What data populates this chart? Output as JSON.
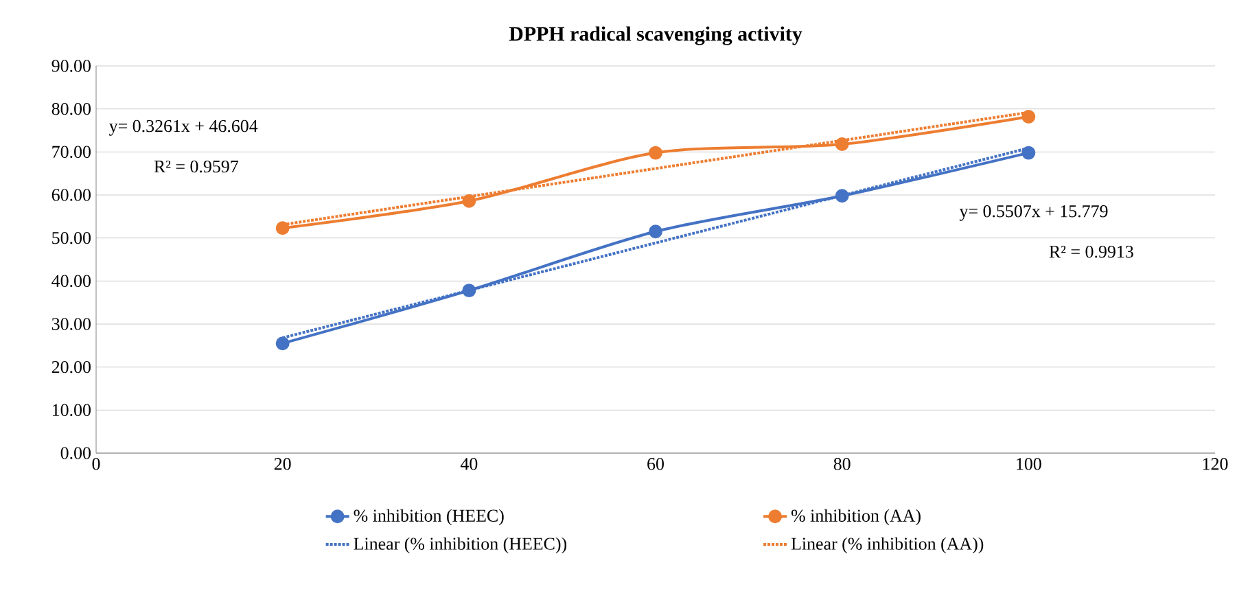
{
  "chart_data": {
    "type": "line",
    "title": "DPPH radical scavenging activity",
    "xlim": [
      0,
      120
    ],
    "xticks": [
      0,
      20,
      40,
      60,
      80,
      100,
      120
    ],
    "ylim": [
      0,
      90
    ],
    "yticks": [
      {
        "value": 0,
        "label": "0.00"
      },
      {
        "value": 10,
        "label": "10.00"
      },
      {
        "value": 20,
        "label": "20.00"
      },
      {
        "value": 30,
        "label": "30.00"
      },
      {
        "value": 40,
        "label": "40.00"
      },
      {
        "value": 50,
        "label": "50.00"
      },
      {
        "value": 60,
        "label": "60.00"
      },
      {
        "value": 70,
        "label": "70.00"
      },
      {
        "value": 80,
        "label": "80.00"
      },
      {
        "value": 90,
        "label": "90.00"
      }
    ],
    "grid": "y",
    "legend": "bottom",
    "series": [
      {
        "name": "% inhibition (HEEC)",
        "color": "#4472c4",
        "x": [
          20,
          40,
          60,
          80,
          100
        ],
        "values": [
          25.5,
          37.8,
          51.5,
          59.8,
          69.8
        ],
        "marker": "circle",
        "line_style": "solid"
      },
      {
        "name": "% inhibition (AA)",
        "color": "#ed7d31",
        "x": [
          20,
          40,
          60,
          80,
          100
        ],
        "values": [
          52.3,
          58.6,
          69.8,
          71.8,
          78.2
        ],
        "marker": "circle",
        "line_style": "solid"
      },
      {
        "name": "Linear (% inhibition (HEEC))",
        "color": "#4472c4",
        "x": [
          20,
          100
        ],
        "values": [
          26.8,
          70.9
        ],
        "marker": "none",
        "line_style": "dotted"
      },
      {
        "name": "Linear (% inhibition (AA))",
        "color": "#ed7d31",
        "x": [
          20,
          100
        ],
        "values": [
          53.1,
          79.2
        ],
        "marker": "none",
        "line_style": "dotted"
      }
    ],
    "annotations": [
      "y= 0.3261x + 46.604",
      "R² = 0.9597",
      "y= 0.5507x + 15.779",
      "R² = 0.9913"
    ]
  }
}
